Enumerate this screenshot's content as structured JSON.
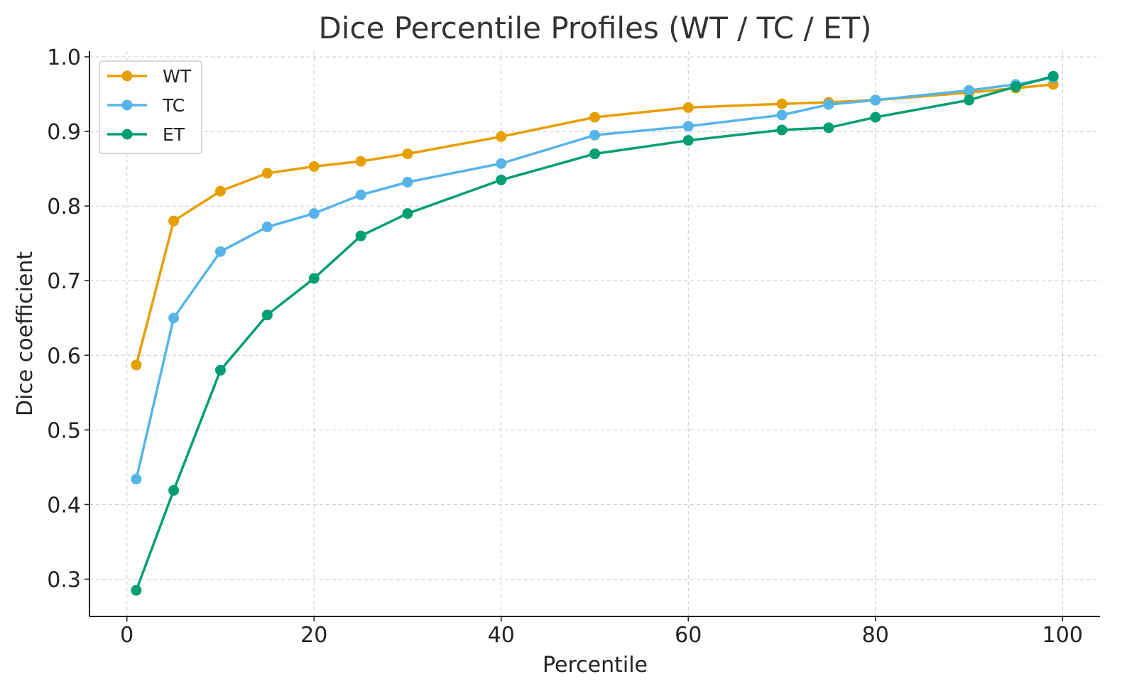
{
  "chart_data": {
    "type": "line",
    "title": "Dice Percentile Profiles (WT / TC / ET)",
    "xlabel": "Percentile",
    "ylabel": "Dice coefficient",
    "xlim": [
      -4,
      104
    ],
    "ylim": [
      0.25,
      1.0
    ],
    "xticks": [
      0,
      20,
      40,
      60,
      80,
      100
    ],
    "yticks": [
      0.3,
      0.4,
      0.5,
      0.6,
      0.7,
      0.8,
      0.9,
      1.0
    ],
    "xtick_labels": [
      "0",
      "20",
      "40",
      "60",
      "80",
      "100"
    ],
    "ytick_labels": [
      "0.3",
      "0.4",
      "0.5",
      "0.6",
      "0.7",
      "0.8",
      "0.9",
      "1.0"
    ],
    "grid": true,
    "legend_position": "top-left",
    "x": [
      1,
      5,
      10,
      15,
      20,
      25,
      30,
      40,
      50,
      60,
      70,
      75,
      80,
      90,
      95,
      99
    ],
    "series": [
      {
        "name": "WT",
        "color": "#E69F00",
        "values": [
          0.587,
          0.78,
          0.82,
          0.844,
          0.853,
          0.86,
          0.87,
          0.893,
          0.919,
          0.932,
          0.937,
          0.939,
          0.942,
          0.952,
          0.958,
          0.963
        ]
      },
      {
        "name": "TC",
        "color": "#56B4E9",
        "values": [
          0.434,
          0.65,
          0.739,
          0.772,
          0.79,
          0.815,
          0.832,
          0.857,
          0.895,
          0.907,
          0.922,
          0.936,
          0.942,
          0.955,
          0.963,
          0.972
        ]
      },
      {
        "name": "ET",
        "color": "#009E73",
        "values": [
          0.285,
          0.419,
          0.58,
          0.654,
          0.703,
          0.76,
          0.79,
          0.835,
          0.87,
          0.888,
          0.902,
          0.905,
          0.919,
          0.942,
          0.96,
          0.974
        ]
      }
    ]
  }
}
